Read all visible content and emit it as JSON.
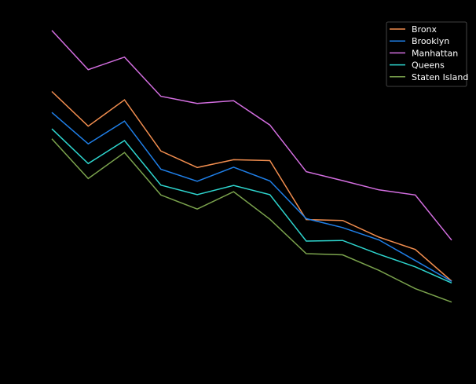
{
  "chart_data": {
    "type": "line",
    "title": "",
    "xlabel": "",
    "ylabel": "",
    "x": [
      1,
      2,
      3,
      4,
      5,
      6,
      7,
      8,
      9,
      10,
      11,
      12
    ],
    "ylim": [
      0,
      100
    ],
    "grid": false,
    "legend_position": "top-right",
    "background": "#000000",
    "series": [
      {
        "name": "Bronx",
        "color": "#f28e4f",
        "values": [
          75.2,
          63.6,
          72.4,
          55.3,
          49.8,
          52.4,
          52.1,
          32.4,
          32.1,
          26.5,
          22.4,
          11.8
        ]
      },
      {
        "name": "Brooklyn",
        "color": "#1f7fe8",
        "values": [
          68.2,
          57.7,
          65.3,
          49.2,
          45.2,
          49.9,
          45.3,
          32.7,
          29.7,
          25.6,
          18.7,
          11.7
        ]
      },
      {
        "name": "Manhattan",
        "color": "#d36ee0",
        "values": [
          95.6,
          82.5,
          86.7,
          73.6,
          71.2,
          72.1,
          64.0,
          48.4,
          45.4,
          42.3,
          40.6,
          25.5
        ]
      },
      {
        "name": "Queens",
        "color": "#2ed6cf",
        "values": [
          62.7,
          51.1,
          58.8,
          43.9,
          40.7,
          43.8,
          40.7,
          25.2,
          25.4,
          20.8,
          16.6,
          11.2
        ]
      },
      {
        "name": "Staten Island",
        "color": "#7ba34d",
        "values": [
          59.4,
          46.1,
          54.8,
          40.6,
          35.9,
          41.7,
          32.5,
          21.0,
          20.6,
          15.4,
          9.3,
          4.8
        ]
      }
    ]
  }
}
